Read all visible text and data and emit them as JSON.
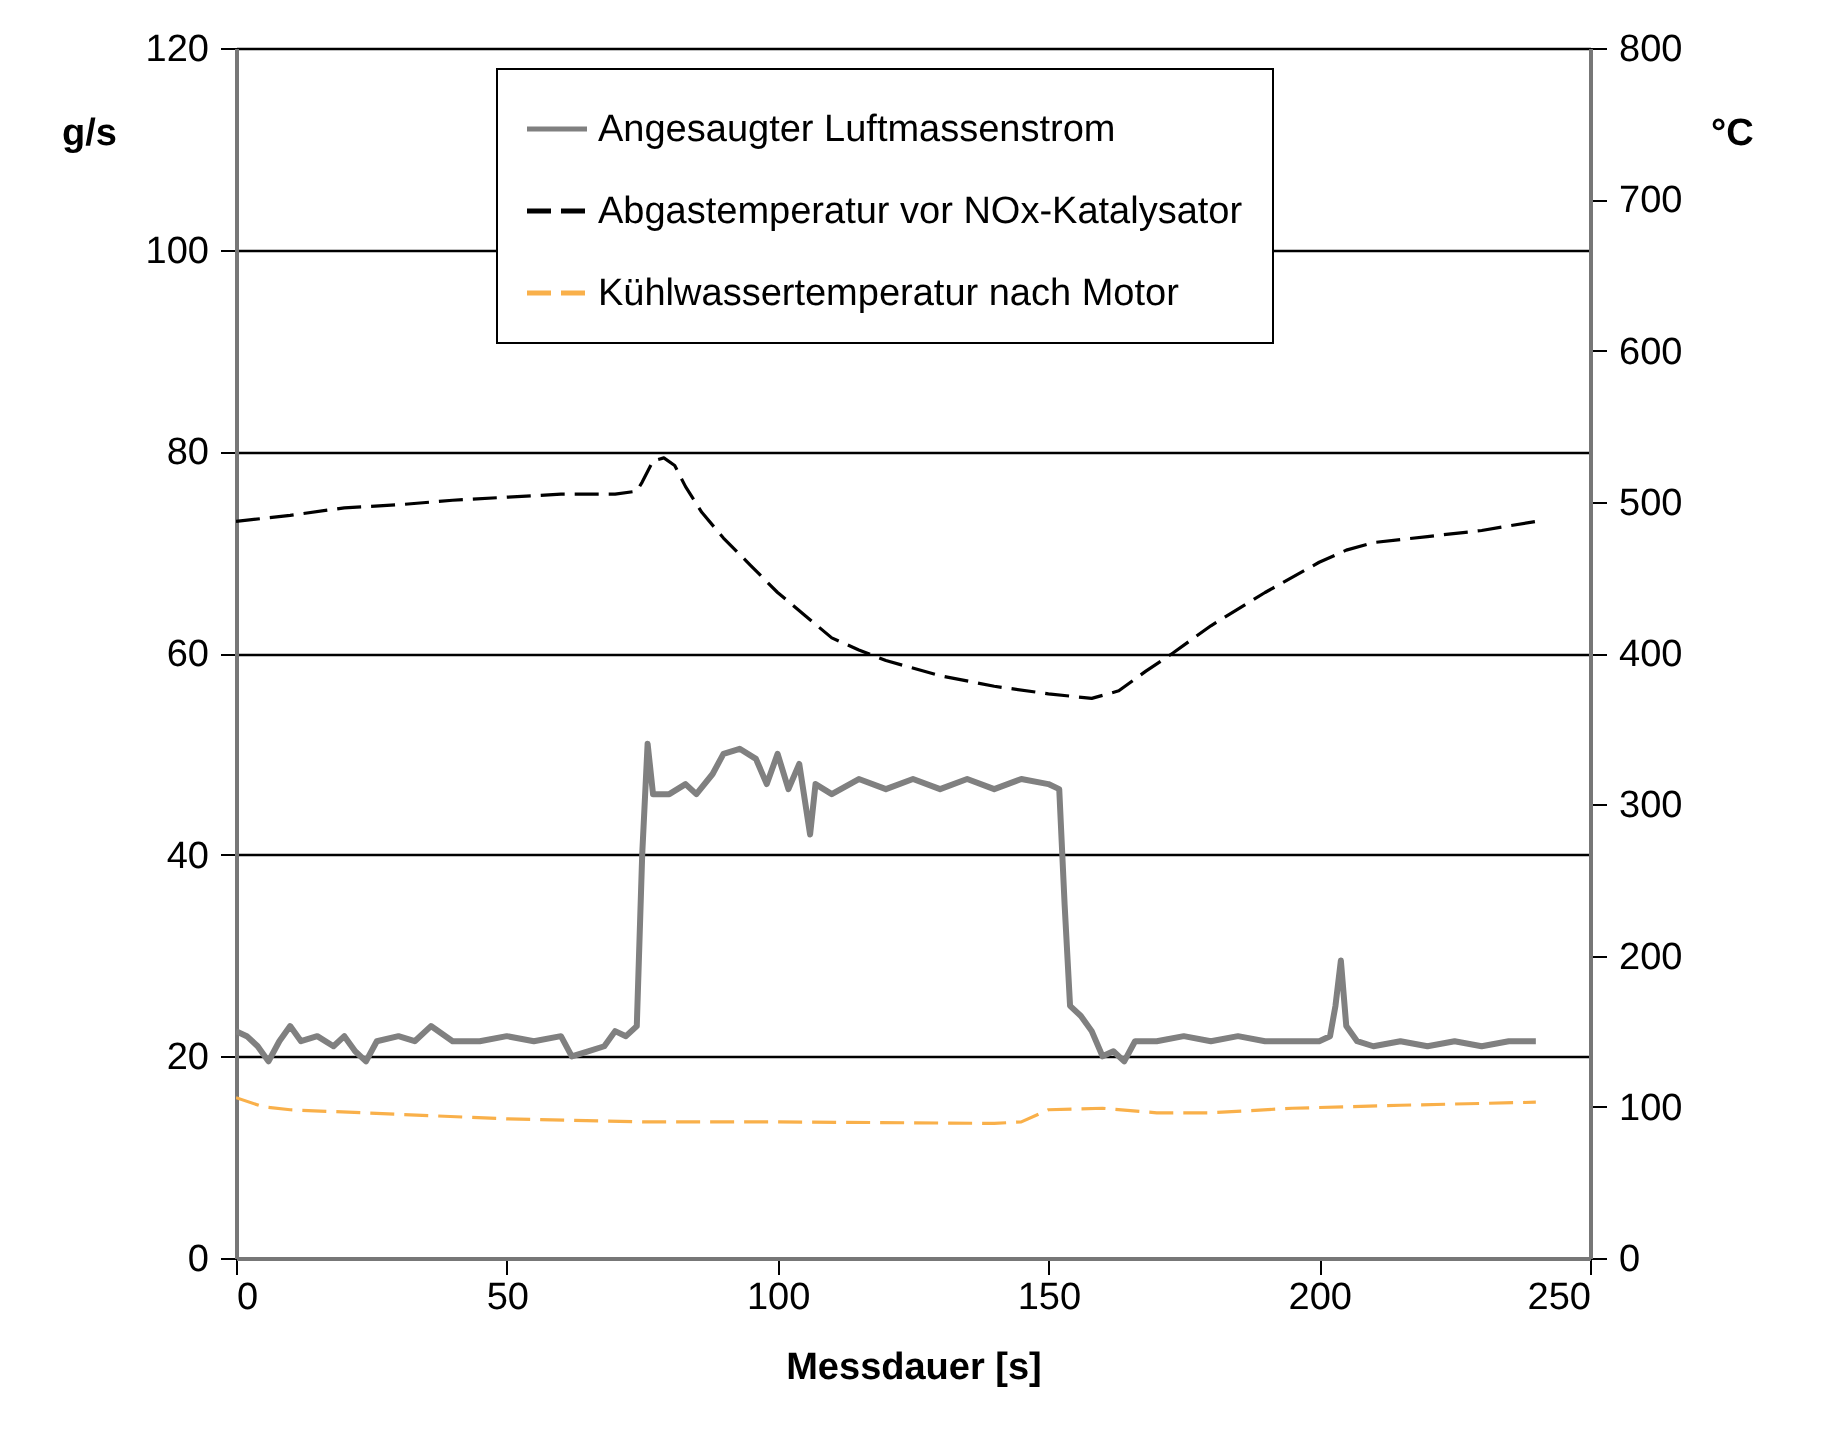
{
  "chart_data": {
    "type": "line",
    "xlabel": "Messdauer [s]",
    "ylabel": "g/s",
    "y2label": "°C",
    "xlim": [
      0,
      250
    ],
    "xticks": [
      0,
      50,
      100,
      150,
      200,
      250
    ],
    "ylim": [
      0,
      120
    ],
    "yticks": [
      0,
      20,
      40,
      60,
      80,
      100,
      120
    ],
    "y2lim": [
      0,
      800
    ],
    "y2ticks": [
      0,
      100,
      200,
      300,
      400,
      500,
      600,
      700,
      800
    ],
    "grid": "y",
    "legend": "top",
    "marker": "none",
    "series": [
      {
        "name": "Angesaugter Luftmassenstrom",
        "color": "#808080",
        "line_style": "solid",
        "x": [
          0,
          2,
          4,
          6,
          8,
          10,
          12,
          15,
          18,
          20,
          22,
          24,
          26,
          30,
          33,
          36,
          40,
          45,
          50,
          55,
          60,
          62,
          65,
          68,
          70,
          72,
          74,
          75,
          76,
          77,
          80,
          83,
          85,
          88,
          90,
          93,
          96,
          98,
          100,
          102,
          104,
          106,
          107,
          110,
          115,
          120,
          125,
          130,
          135,
          140,
          145,
          150,
          152,
          153,
          154,
          156,
          158,
          160,
          162,
          164,
          166,
          170,
          175,
          180,
          185,
          190,
          195,
          200,
          202,
          203,
          204,
          205,
          207,
          210,
          215,
          220,
          225,
          230,
          235,
          240
        ],
        "values": [
          22.5,
          22,
          21,
          19.5,
          21.5,
          23,
          21.5,
          22,
          21,
          22,
          20.5,
          19.5,
          21.5,
          22,
          21.5,
          23,
          21.5,
          21.5,
          22,
          21.5,
          22,
          20,
          20.5,
          21,
          22.5,
          22,
          23,
          40,
          51,
          46,
          46,
          47,
          46,
          48,
          50,
          50.5,
          49.5,
          47,
          50,
          46.5,
          49,
          42,
          47,
          46,
          47.5,
          46.5,
          47.5,
          46.5,
          47.5,
          46.5,
          47.5,
          47,
          46.5,
          35,
          25,
          24,
          22.5,
          20,
          20.5,
          19.5,
          21.5,
          21.5,
          22,
          21.5,
          22,
          21.5,
          21.5,
          21.5,
          22,
          25,
          29.5,
          23,
          21.5,
          21,
          21.5,
          21,
          21.5,
          21,
          21.5,
          21.5
        ]
      },
      {
        "name": "Abgastemperatur vor NOx-Katalysator",
        "color": "#000000",
        "line_style": "dashed",
        "axis": "y2",
        "x": [
          0,
          10,
          20,
          30,
          40,
          50,
          60,
          70,
          74,
          75,
          77,
          79,
          81,
          83,
          86,
          90,
          95,
          100,
          105,
          110,
          115,
          120,
          130,
          140,
          150,
          158,
          163,
          168,
          173,
          180,
          190,
          200,
          205,
          210,
          220,
          230,
          240
        ],
        "values": [
          487,
          491,
          496,
          498,
          501,
          503,
          505,
          505,
          507,
          513,
          527,
          529,
          524,
          510,
          493,
          476,
          458,
          440,
          425,
          410,
          402,
          395,
          385,
          378,
          373,
          370,
          375,
          388,
          400,
          418,
          440,
          460,
          468,
          473,
          477,
          481,
          487
        ]
      },
      {
        "name": "Kühlwassertemperatur nach Motor",
        "color": "#f9b04a",
        "line_style": "dashed",
        "axis": "y2",
        "x": [
          0,
          5,
          10,
          30,
          50,
          75,
          100,
          140,
          145,
          150,
          160,
          170,
          180,
          195,
          215,
          240
        ],
        "values": [
          106,
          100,
          98,
          95,
          92,
          90,
          90,
          89,
          90,
          98,
          99,
          96,
          96,
          99,
          101,
          103
        ]
      }
    ]
  }
}
